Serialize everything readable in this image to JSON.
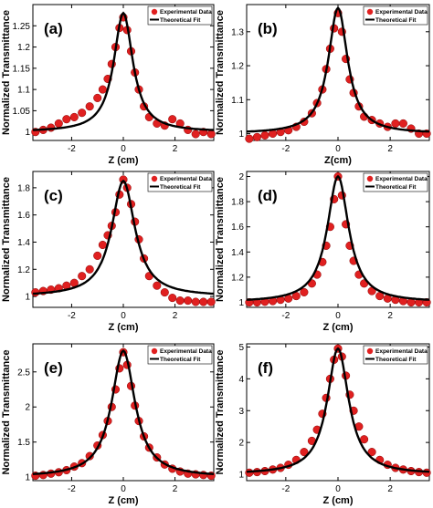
{
  "chart_data": [
    {
      "type": "scatter",
      "panel_label": "(a)",
      "xlabel": "Z (cm)",
      "ylabel": "Normalized Transmittance",
      "xlim": [
        -3.5,
        3.5
      ],
      "ylim": [
        0.98,
        1.3
      ],
      "xticks": [
        -2,
        0,
        2
      ],
      "xtick_labels": [
        "-2",
        "0",
        "2"
      ],
      "yticks": [
        1.0,
        1.05,
        1.1,
        1.15,
        1.2,
        1.25
      ],
      "ytick_labels": [
        "1",
        "1.05",
        "1.1",
        "1.15",
        "1.2",
        "1.25"
      ],
      "legend": {
        "position": "top-right",
        "entries": [
          "Experimental Data",
          "Theoretical Fit"
        ]
      },
      "series": [
        {
          "name": "Experimental Data",
          "kind": "markers",
          "color": "#e02020",
          "x": [
            -3.4,
            -3.1,
            -2.8,
            -2.5,
            -2.2,
            -1.9,
            -1.6,
            -1.3,
            -1.0,
            -0.8,
            -0.6,
            -0.45,
            -0.3,
            -0.15,
            0.0,
            0.15,
            0.3,
            0.45,
            0.6,
            0.8,
            1.0,
            1.3,
            1.6,
            1.9,
            2.2,
            2.5,
            2.8,
            3.1,
            3.4
          ],
          "y": [
            1.0,
            1.005,
            1.01,
            1.02,
            1.03,
            1.035,
            1.045,
            1.06,
            1.08,
            1.1,
            1.125,
            1.16,
            1.2,
            1.245,
            1.27,
            1.24,
            1.19,
            1.14,
            1.1,
            1.06,
            1.035,
            1.02,
            1.015,
            1.03,
            1.02,
            1.005,
            0.995,
            1.0,
            0.995
          ]
        },
        {
          "name": "Theoretical Fit",
          "kind": "line",
          "color": "#000000",
          "peak": 1.28,
          "baseline": 1.0,
          "z0": 0.45
        }
      ]
    },
    {
      "type": "scatter",
      "panel_label": "(b)",
      "xlabel": "Z(cm)",
      "ylabel": "Normalized Transmittance",
      "xlim": [
        -3.5,
        3.5
      ],
      "ylim": [
        0.98,
        1.38
      ],
      "xticks": [
        -2,
        0,
        2
      ],
      "xtick_labels": [
        "-2",
        "0",
        "2"
      ],
      "yticks": [
        1.0,
        1.1,
        1.2,
        1.3
      ],
      "ytick_labels": [
        "1",
        "1.1",
        "1.2",
        "1.3"
      ],
      "legend": {
        "position": "top-right",
        "entries": [
          "Experimental Data",
          "Theoretical Fit"
        ]
      },
      "series": [
        {
          "name": "Experimental Data",
          "kind": "markers",
          "color": "#e02020",
          "x": [
            -3.4,
            -3.1,
            -2.8,
            -2.5,
            -2.2,
            -1.9,
            -1.6,
            -1.3,
            -1.0,
            -0.8,
            -0.6,
            -0.45,
            -0.3,
            -0.15,
            0.0,
            0.15,
            0.3,
            0.45,
            0.6,
            0.8,
            1.0,
            1.3,
            1.6,
            1.9,
            2.2,
            2.5,
            2.8,
            3.1,
            3.4
          ],
          "y": [
            0.985,
            0.99,
            0.995,
            1.0,
            1.005,
            1.01,
            1.02,
            1.035,
            1.06,
            1.09,
            1.13,
            1.19,
            1.25,
            1.31,
            1.355,
            1.3,
            1.22,
            1.16,
            1.12,
            1.08,
            1.05,
            1.04,
            1.03,
            1.02,
            1.03,
            1.03,
            1.015,
            1.0,
            1.0
          ]
        },
        {
          "name": "Theoretical Fit",
          "kind": "line",
          "color": "#000000",
          "peak": 1.37,
          "baseline": 1.0,
          "z0": 0.45
        }
      ]
    },
    {
      "type": "scatter",
      "panel_label": "(c)",
      "xlabel": "Z (cm)",
      "ylabel": "Normalized  Transmittance",
      "xlim": [
        -3.5,
        3.5
      ],
      "ylim": [
        0.92,
        1.92
      ],
      "xticks": [
        -2,
        0,
        2
      ],
      "xtick_labels": [
        "-2",
        "0",
        "2"
      ],
      "yticks": [
        1.0,
        1.2,
        1.4,
        1.6,
        1.8
      ],
      "ytick_labels": [
        "1",
        "1.2",
        "1.4",
        "1.6",
        "1.8"
      ],
      "legend": {
        "position": "top-right",
        "entries": [
          "Experimental Data",
          "Theoretical Fit"
        ]
      },
      "series": [
        {
          "name": "Experimental Data",
          "kind": "markers",
          "color": "#e02020",
          "x": [
            -3.4,
            -3.1,
            -2.8,
            -2.5,
            -2.2,
            -1.9,
            -1.6,
            -1.3,
            -1.0,
            -0.8,
            -0.6,
            -0.45,
            -0.3,
            -0.15,
            0.0,
            0.15,
            0.3,
            0.45,
            0.6,
            0.8,
            1.0,
            1.3,
            1.6,
            1.9,
            2.2,
            2.5,
            2.8,
            3.1,
            3.4
          ],
          "y": [
            1.03,
            1.04,
            1.05,
            1.06,
            1.08,
            1.1,
            1.15,
            1.2,
            1.3,
            1.38,
            1.45,
            1.52,
            1.62,
            1.75,
            1.86,
            1.8,
            1.68,
            1.55,
            1.42,
            1.28,
            1.15,
            1.08,
            1.03,
            0.99,
            0.97,
            0.97,
            0.96,
            0.96,
            0.96
          ]
        },
        {
          "name": "Theoretical Fit",
          "kind": "line",
          "color": "#000000",
          "peak": 1.85,
          "baseline": 1.0,
          "z0": 0.55
        }
      ]
    },
    {
      "type": "scatter",
      "panel_label": "(d)",
      "xlabel": "Z (cm)",
      "ylabel": "Normalized Transmittance",
      "xlim": [
        -3.5,
        3.5
      ],
      "ylim": [
        0.96,
        2.04
      ],
      "xticks": [
        -2,
        0,
        2
      ],
      "xtick_labels": [
        "-2",
        "0",
        "2"
      ],
      "yticks": [
        1.0,
        1.2,
        1.4,
        1.6,
        1.8,
        2.0
      ],
      "ytick_labels": [
        "1",
        "1.2",
        "1.4",
        "1.6",
        "1.8",
        "2"
      ],
      "legend": {
        "position": "top-right",
        "entries": [
          "Experimental Data",
          "Theoretical Fit"
        ]
      },
      "series": [
        {
          "name": "Experimental Data",
          "kind": "markers",
          "color": "#e02020",
          "x": [
            -3.4,
            -3.1,
            -2.8,
            -2.5,
            -2.2,
            -1.9,
            -1.6,
            -1.3,
            -1.0,
            -0.8,
            -0.6,
            -0.45,
            -0.3,
            -0.15,
            0.0,
            0.15,
            0.3,
            0.45,
            0.6,
            0.8,
            1.0,
            1.3,
            1.6,
            1.9,
            2.2,
            2.5,
            2.8,
            3.1,
            3.4
          ],
          "y": [
            1.0,
            1.0,
            1.005,
            1.01,
            1.02,
            1.03,
            1.05,
            1.08,
            1.15,
            1.22,
            1.32,
            1.45,
            1.6,
            1.82,
            2.0,
            1.85,
            1.62,
            1.45,
            1.33,
            1.22,
            1.15,
            1.09,
            1.05,
            1.03,
            1.02,
            1.01,
            1.0,
            1.0,
            1.0
          ]
        },
        {
          "name": "Theoretical Fit",
          "kind": "line",
          "color": "#000000",
          "peak": 2.0,
          "baseline": 1.0,
          "z0": 0.5
        }
      ]
    },
    {
      "type": "scatter",
      "panel_label": "(e)",
      "xlabel": "Z (cm)",
      "ylabel": "Normalized Transmittance",
      "xlim": [
        -3.5,
        3.5
      ],
      "ylim": [
        0.95,
        2.9
      ],
      "xticks": [
        -2,
        0,
        2
      ],
      "xtick_labels": [
        "-2",
        "0",
        "2"
      ],
      "yticks": [
        1.0,
        1.5,
        2.0,
        2.5
      ],
      "ytick_labels": [
        "1",
        "1.5",
        "2",
        "2.5"
      ],
      "legend": {
        "position": "top-right",
        "entries": [
          "Experimental Data",
          "Theoretical Fit"
        ]
      },
      "series": [
        {
          "name": "Experimental Data",
          "kind": "markers",
          "color": "#e02020",
          "x": [
            -3.4,
            -3.1,
            -2.8,
            -2.5,
            -2.2,
            -1.9,
            -1.6,
            -1.3,
            -1.0,
            -0.8,
            -0.6,
            -0.45,
            -0.3,
            -0.15,
            0.0,
            0.15,
            0.3,
            0.45,
            0.6,
            0.8,
            1.0,
            1.3,
            1.6,
            1.9,
            2.2,
            2.5,
            2.8,
            3.1,
            3.4
          ],
          "y": [
            1.02,
            1.03,
            1.05,
            1.07,
            1.1,
            1.15,
            1.2,
            1.3,
            1.45,
            1.6,
            1.8,
            2.0,
            2.25,
            2.55,
            2.78,
            2.6,
            2.3,
            2.02,
            1.8,
            1.58,
            1.42,
            1.28,
            1.18,
            1.12,
            1.08,
            1.05,
            1.04,
            1.03,
            1.02
          ]
        },
        {
          "name": "Theoretical Fit",
          "kind": "line",
          "color": "#000000",
          "peak": 2.8,
          "baseline": 1.0,
          "z0": 0.55
        }
      ]
    },
    {
      "type": "scatter",
      "panel_label": "(f)",
      "xlabel": "Z (cm)",
      "ylabel": "Normalized Transmittance",
      "xlim": [
        -3.5,
        3.5
      ],
      "ylim": [
        0.8,
        5.1
      ],
      "xticks": [
        -2,
        0,
        2
      ],
      "xtick_labels": [
        "-2",
        "0",
        "2"
      ],
      "yticks": [
        1,
        2,
        3,
        4,
        5
      ],
      "ytick_labels": [
        "1",
        "2",
        "3",
        "4",
        "5"
      ],
      "legend": {
        "position": "top-right",
        "entries": [
          "Experimental Data",
          "Theoretical Fit"
        ]
      },
      "series": [
        {
          "name": "Experimental Data",
          "kind": "markers",
          "color": "#e02020",
          "x": [
            -3.4,
            -3.1,
            -2.8,
            -2.5,
            -2.2,
            -1.9,
            -1.6,
            -1.3,
            -1.0,
            -0.8,
            -0.6,
            -0.45,
            -0.3,
            -0.15,
            0.0,
            0.15,
            0.3,
            0.45,
            0.6,
            0.8,
            1.0,
            1.3,
            1.6,
            1.9,
            2.2,
            2.5,
            2.8,
            3.1,
            3.4
          ],
          "y": [
            1.05,
            1.07,
            1.1,
            1.15,
            1.2,
            1.3,
            1.45,
            1.7,
            2.05,
            2.4,
            2.9,
            3.4,
            4.0,
            4.6,
            4.95,
            4.7,
            4.1,
            3.5,
            3.0,
            2.5,
            2.1,
            1.7,
            1.45,
            1.3,
            1.2,
            1.15,
            1.1,
            1.07,
            1.05
          ]
        },
        {
          "name": "Theoretical Fit",
          "kind": "line",
          "color": "#000000",
          "peak": 4.95,
          "baseline": 1.0,
          "z0": 0.5
        }
      ]
    }
  ]
}
